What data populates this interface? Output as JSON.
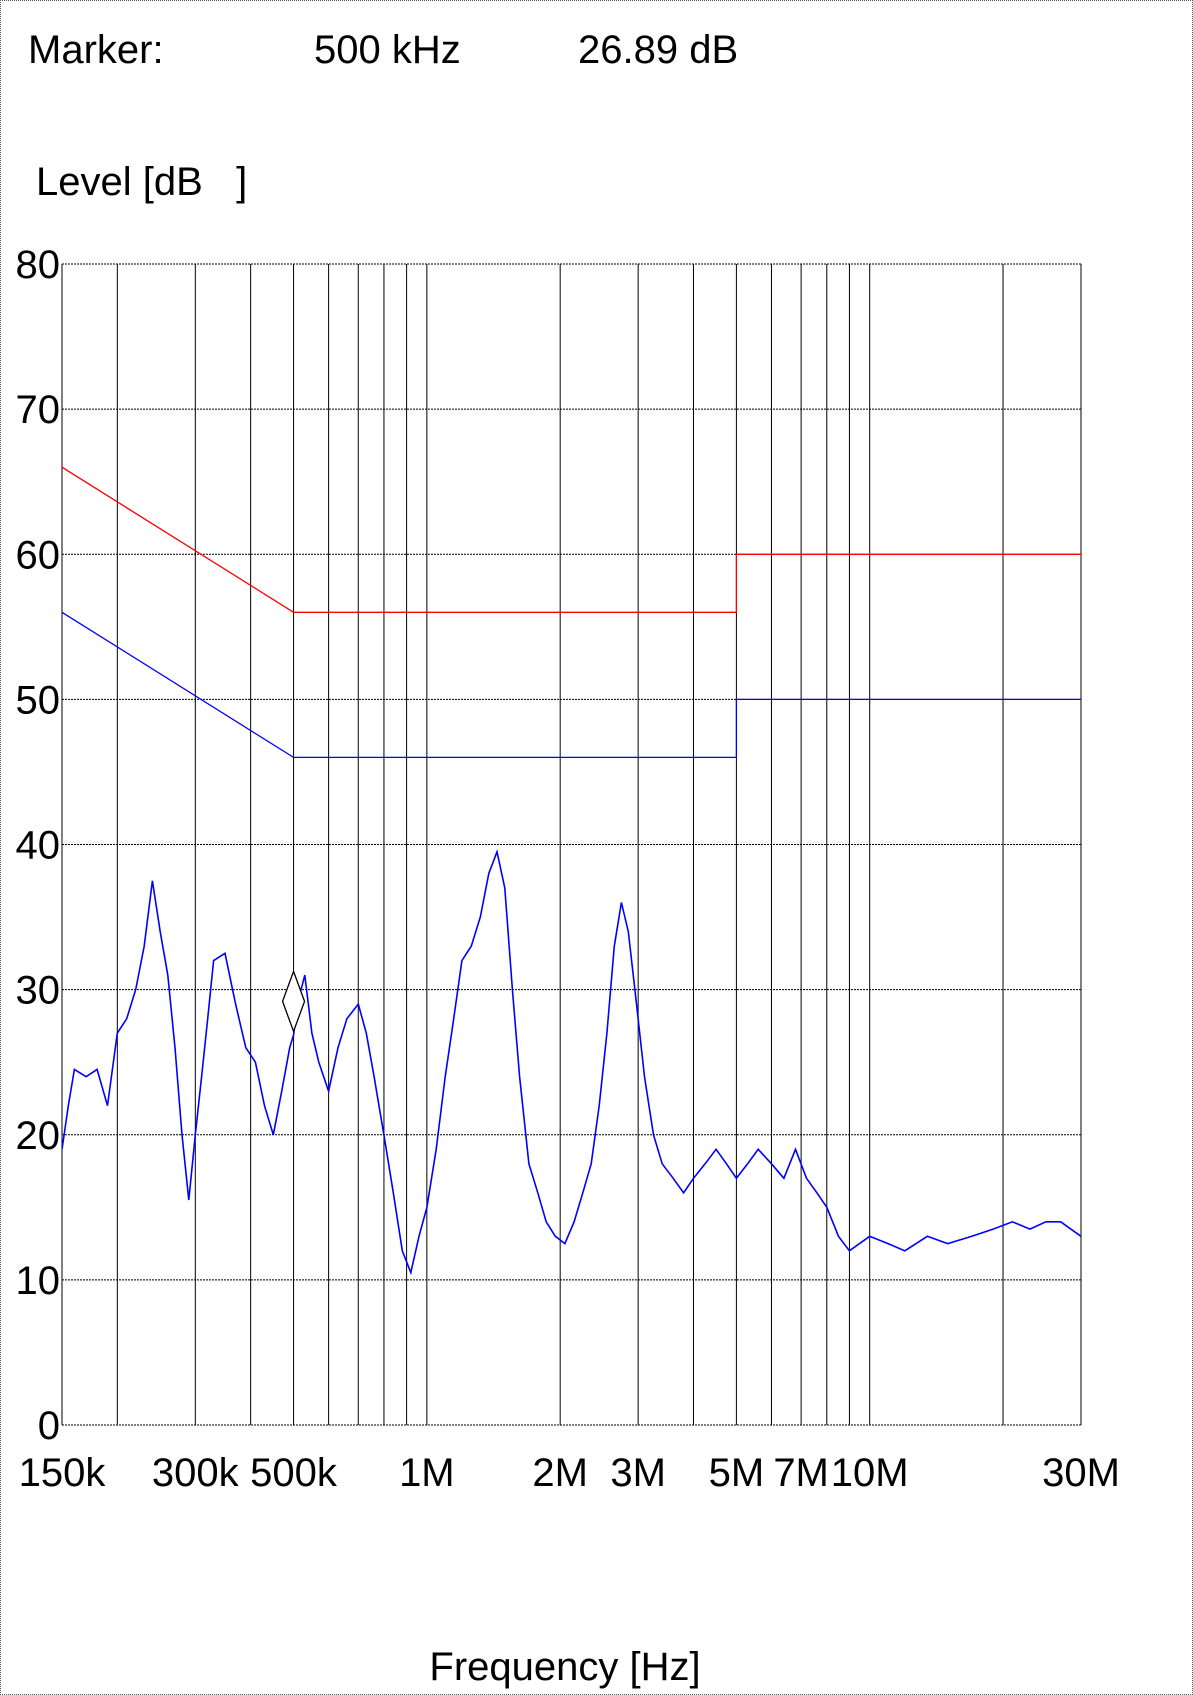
{
  "marker": {
    "label": "Marker:",
    "frequency": "500 kHz",
    "level": "26.89 dB",
    "freq_hz": 500000,
    "level_db": 26.89
  },
  "colors": {
    "limit_qp": "#ff0000",
    "limit_avg": "#0000ff",
    "trace": "#0000ff",
    "grid": "#000000"
  },
  "chart_data": {
    "type": "line",
    "title": "",
    "ylabel": "Level [dB   ]",
    "xlabel": "Frequency [Hz]",
    "x_scale": "log",
    "xlim": [
      150000,
      30000000
    ],
    "ylim": [
      0,
      80
    ],
    "grid": true,
    "y_ticks": [
      0,
      10,
      20,
      30,
      40,
      50,
      60,
      70,
      80
    ],
    "y_tick_labels": [
      "0",
      "10",
      "20",
      "30",
      "40",
      "50",
      "60",
      "70",
      "80"
    ],
    "x_ticks": [
      150000,
      300000,
      500000,
      1000000,
      2000000,
      3000000,
      5000000,
      7000000,
      10000000,
      30000000
    ],
    "x_tick_labels": [
      "150k",
      "300k",
      "500k",
      "1M",
      "2M",
      "3M",
      "5M",
      "7M",
      "10M",
      "30M"
    ],
    "series": [
      {
        "color": "#ff0000",
        "x": [
          150000,
          500000,
          500000,
          5000000,
          5000000,
          30000000
        ],
        "y": [
          66,
          56,
          56,
          56,
          60,
          60
        ]
      },
      {
        "color": "#0000ff",
        "x": [
          150000,
          500000,
          500000,
          5000000,
          5000000,
          30000000
        ],
        "y": [
          56,
          46,
          46,
          46,
          50,
          50
        ]
      },
      {
        "color": "#0000ff",
        "x": [
          150000,
          155000,
          160000,
          170000,
          180000,
          190000,
          200000,
          210000,
          220000,
          230000,
          240000,
          250000,
          260000,
          270000,
          280000,
          290000,
          300000,
          310000,
          320000,
          330000,
          350000,
          370000,
          390000,
          410000,
          430000,
          450000,
          470000,
          490000,
          500000,
          510000,
          530000,
          550000,
          570000,
          600000,
          630000,
          660000,
          700000,
          730000,
          760000,
          800000,
          840000,
          880000,
          920000,
          960000,
          1000000,
          1050000,
          1100000,
          1150000,
          1200000,
          1260000,
          1320000,
          1380000,
          1440000,
          1500000,
          1560000,
          1620000,
          1700000,
          1780000,
          1860000,
          1950000,
          2050000,
          2150000,
          2250000,
          2350000,
          2450000,
          2550000,
          2650000,
          2750000,
          2850000,
          2950000,
          3100000,
          3250000,
          3400000,
          3600000,
          3800000,
          4000000,
          4250000,
          4500000,
          4750000,
          5000000,
          5300000,
          5600000,
          6000000,
          6400000,
          6800000,
          7200000,
          7600000,
          8000000,
          8500000,
          9000000,
          10000000,
          11000000,
          12000000,
          13500000,
          15000000,
          17000000,
          19000000,
          21000000,
          23000000,
          25000000,
          27000000,
          30000000
        ],
        "y": [
          19,
          22,
          24.5,
          24,
          24.5,
          22,
          27,
          28,
          30,
          33,
          37.5,
          34,
          31,
          26,
          20,
          15.5,
          20,
          24,
          28,
          32,
          32.5,
          29,
          26,
          25,
          22,
          20,
          23,
          26,
          26.89,
          29,
          31,
          27,
          25,
          23,
          26,
          28,
          29,
          27,
          24,
          20,
          16,
          12,
          10.5,
          13,
          15,
          19,
          24,
          28,
          32,
          33,
          35,
          38,
          39.5,
          37,
          30,
          24,
          18,
          16,
          14,
          13,
          12.5,
          14,
          16,
          18,
          22,
          27,
          33,
          36,
          34,
          30,
          24,
          20,
          18,
          17,
          16,
          17,
          18,
          19,
          18,
          17,
          18,
          19,
          18,
          17,
          19,
          17,
          16,
          15,
          13,
          12,
          13,
          12.5,
          12,
          13,
          12.5,
          13,
          13.5,
          14,
          13.5,
          14,
          14,
          13
        ]
      }
    ]
  }
}
